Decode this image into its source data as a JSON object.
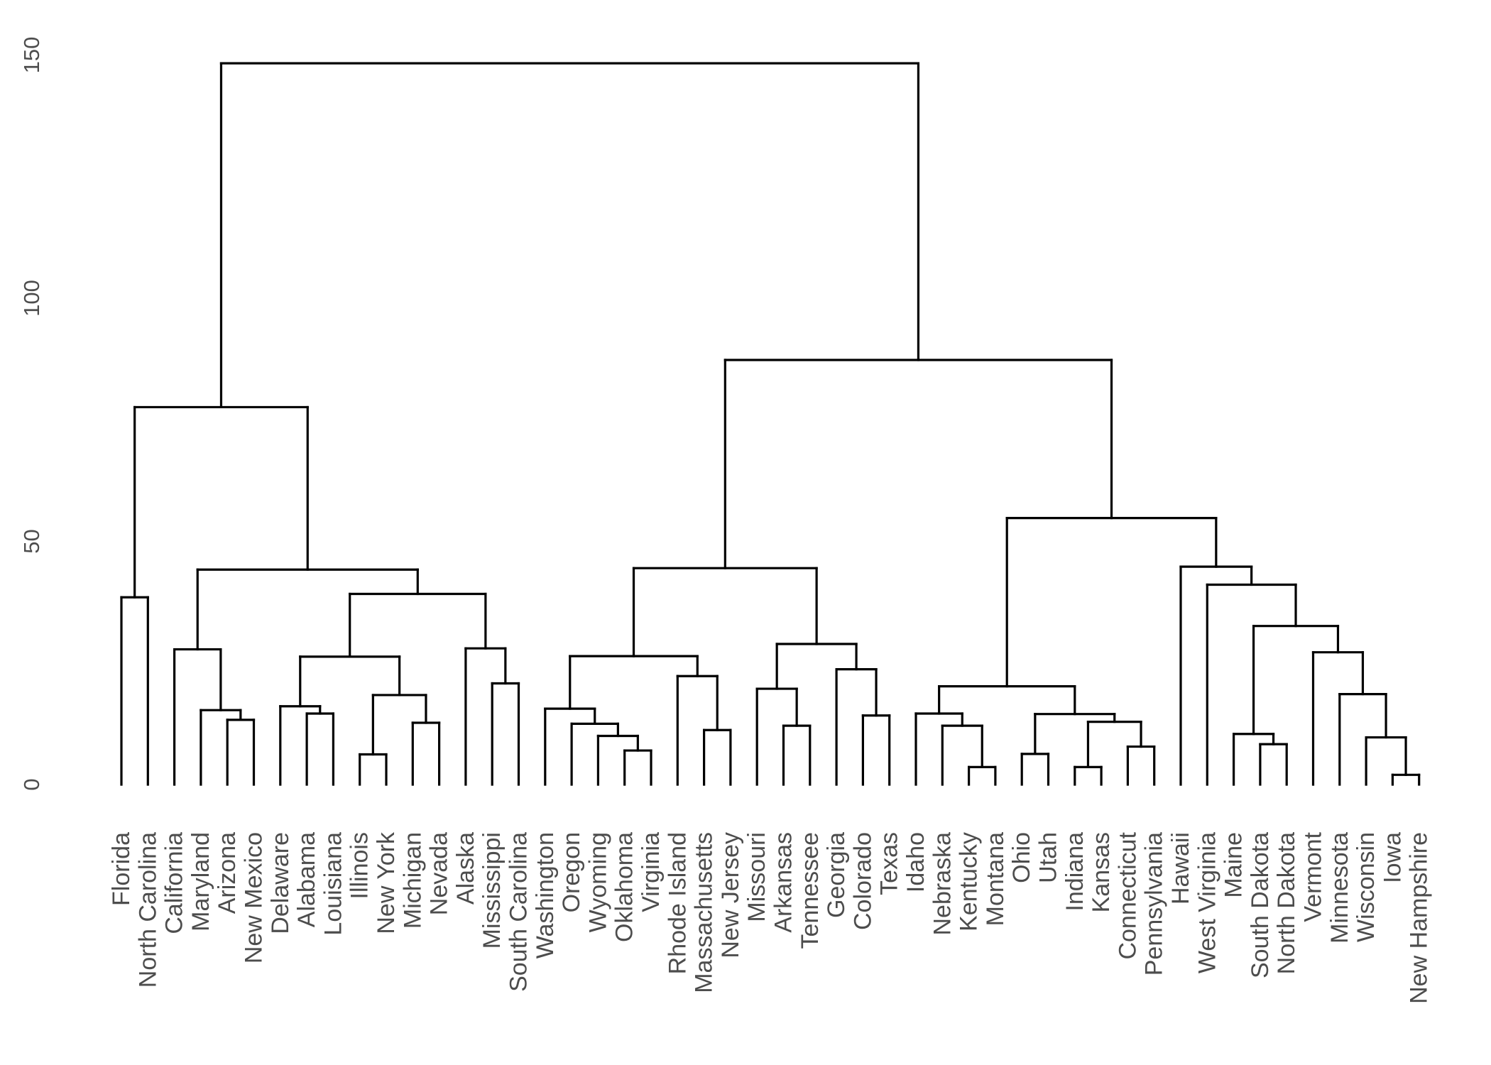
{
  "chart_data": {
    "type": "dendrogram",
    "title": "",
    "xlabel": "",
    "ylabel": "",
    "ylim": [
      0,
      155
    ],
    "y_ticks": [
      0,
      50,
      100,
      150
    ],
    "grid": false,
    "leaves": [
      "Florida",
      "North Carolina",
      "California",
      "Maryland",
      "Arizona",
      "New Mexico",
      "Delaware",
      "Alabama",
      "Louisiana",
      "Illinois",
      "New York",
      "Michigan",
      "Nevada",
      "Alaska",
      "Mississippi",
      "South Carolina",
      "Washington",
      "Oregon",
      "Wyoming",
      "Oklahoma",
      "Virginia",
      "Rhode Island",
      "Massachusetts",
      "New Jersey",
      "Missouri",
      "Arkansas",
      "Tennessee",
      "Georgia",
      "Colorado",
      "Texas",
      "Idaho",
      "Nebraska",
      "Kentucky",
      "Montana",
      "Ohio",
      "Utah",
      "Indiana",
      "Kansas",
      "Connecticut",
      "Pennsylvania",
      "Hawaii",
      "West Virginia",
      "Maine",
      "South Dakota",
      "North Dakota",
      "Vermont",
      "Minnesota",
      "Wisconsin",
      "Iowa",
      "New Hampshire"
    ],
    "merges": [
      {
        "id": "c1",
        "left": "Florida",
        "right": "North Carolina",
        "height": 38.5
      },
      {
        "id": "c2",
        "left": "Arizona",
        "right": "New Mexico",
        "height": 13.3
      },
      {
        "id": "c3",
        "left": "Maryland",
        "right": "c2",
        "height": 15.3
      },
      {
        "id": "c4",
        "left": "California",
        "right": "c3",
        "height": 27.8
      },
      {
        "id": "c5",
        "left": "Alabama",
        "right": "Louisiana",
        "height": 14.6
      },
      {
        "id": "c6",
        "left": "Delaware",
        "right": "c5",
        "height": 16.1
      },
      {
        "id": "c7",
        "left": "Illinois",
        "right": "New York",
        "height": 6.2
      },
      {
        "id": "c8",
        "left": "Michigan",
        "right": "Nevada",
        "height": 12.7
      },
      {
        "id": "c9",
        "left": "c7",
        "right": "c8",
        "height": 18.4
      },
      {
        "id": "c10",
        "left": "c6",
        "right": "c9",
        "height": 26.3
      },
      {
        "id": "c11",
        "left": "Mississippi",
        "right": "South Carolina",
        "height": 20.8
      },
      {
        "id": "c12",
        "left": "Alaska",
        "right": "c11",
        "height": 28.0
      },
      {
        "id": "c13",
        "left": "c10",
        "right": "c12",
        "height": 39.2
      },
      {
        "id": "c14",
        "left": "c4",
        "right": "c13",
        "height": 44.2
      },
      {
        "id": "c15",
        "left": "c1",
        "right": "c14",
        "height": 77.6
      },
      {
        "id": "c16",
        "left": "Oklahoma",
        "right": "Virginia",
        "height": 7.0
      },
      {
        "id": "c17",
        "left": "Wyoming",
        "right": "c16",
        "height": 10.0
      },
      {
        "id": "c18",
        "left": "Oregon",
        "right": "c17",
        "height": 12.5
      },
      {
        "id": "c19",
        "left": "Washington",
        "right": "c18",
        "height": 15.6
      },
      {
        "id": "c20",
        "left": "Massachusetts",
        "right": "New Jersey",
        "height": 11.2
      },
      {
        "id": "c21",
        "left": "Rhode Island",
        "right": "c20",
        "height": 22.3
      },
      {
        "id": "c22",
        "left": "c19",
        "right": "c21",
        "height": 26.4
      },
      {
        "id": "c23",
        "left": "Arkansas",
        "right": "Tennessee",
        "height": 12.1
      },
      {
        "id": "c24",
        "left": "Missouri",
        "right": "c23",
        "height": 19.7
      },
      {
        "id": "c25",
        "left": "Colorado",
        "right": "Texas",
        "height": 14.2
      },
      {
        "id": "c26",
        "left": "Georgia",
        "right": "c25",
        "height": 23.7
      },
      {
        "id": "c27",
        "left": "c24",
        "right": "c26",
        "height": 28.9
      },
      {
        "id": "c28",
        "left": "c22",
        "right": "c27",
        "height": 44.5
      },
      {
        "id": "c29",
        "left": "Kentucky",
        "right": "Montana",
        "height": 3.6
      },
      {
        "id": "c30",
        "left": "Nebraska",
        "right": "c29",
        "height": 12.1
      },
      {
        "id": "c31",
        "left": "Idaho",
        "right": "c30",
        "height": 14.6
      },
      {
        "id": "c32",
        "left": "Ohio",
        "right": "Utah",
        "height": 6.3
      },
      {
        "id": "c33",
        "left": "Indiana",
        "right": "Kansas",
        "height": 3.6
      },
      {
        "id": "c34",
        "left": "Connecticut",
        "right": "Pennsylvania",
        "height": 7.8
      },
      {
        "id": "c35",
        "left": "c33",
        "right": "c34",
        "height": 12.9
      },
      {
        "id": "c36",
        "left": "c32",
        "right": "c35",
        "height": 14.5
      },
      {
        "id": "c37",
        "left": "c31",
        "right": "c36",
        "height": 20.2
      },
      {
        "id": "c38",
        "left": "South Dakota",
        "right": "North Dakota",
        "height": 8.3
      },
      {
        "id": "c39",
        "left": "Maine",
        "right": "c38",
        "height": 10.4
      },
      {
        "id": "c40",
        "left": "Iowa",
        "right": "New Hampshire",
        "height": 2.0
      },
      {
        "id": "c41",
        "left": "Wisconsin",
        "right": "c40",
        "height": 9.7
      },
      {
        "id": "c42",
        "left": "Minnesota",
        "right": "c41",
        "height": 18.6
      },
      {
        "id": "c43",
        "left": "Vermont",
        "right": "c42",
        "height": 27.2
      },
      {
        "id": "c44",
        "left": "c39",
        "right": "c43",
        "height": 32.6
      },
      {
        "id": "c45",
        "left": "West Virginia",
        "right": "c44",
        "height": 41.1
      },
      {
        "id": "c46",
        "left": "Hawaii",
        "right": "c45",
        "height": 44.8
      },
      {
        "id": "c47",
        "left": "c37",
        "right": "c46",
        "height": 54.8
      },
      {
        "id": "c48",
        "left": "c28",
        "right": "c47",
        "height": 87.3
      },
      {
        "id": "c49",
        "left": "c15",
        "right": "c48",
        "height": 148.3
      }
    ]
  }
}
